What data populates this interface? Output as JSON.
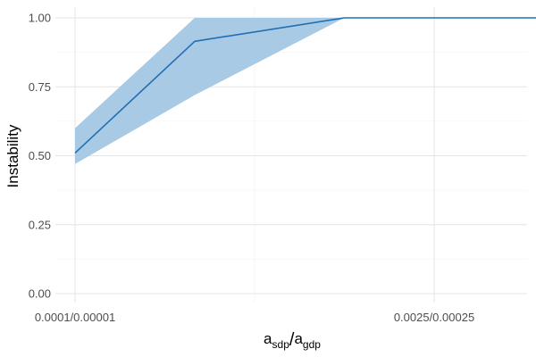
{
  "chart_data": {
    "type": "line",
    "xlabel": {
      "base_a": "a",
      "sub_a": "sdp",
      "slash": "/",
      "base_b": "a",
      "sub_b": "gdp"
    },
    "ylabel": "Instability",
    "x_ticks": [
      {
        "label": "0.0001/0.00001",
        "value": 0.0001
      },
      {
        "label": "0.0025/0.00025",
        "value": 0.0025
      }
    ],
    "xlim": [
      0.0001,
      0.0036
    ],
    "ylim": [
      0.0,
      1.0
    ],
    "y_ticks": [
      "0.00",
      "0.25",
      "0.50",
      "0.75",
      "1.00"
    ],
    "series": [
      {
        "x": [
          0.0001,
          0.0009,
          0.0019,
          0.0025,
          0.003,
          0.0035
        ],
        "y": [
          0.51,
          0.915,
          1.0,
          1.0,
          1.0,
          1.0
        ],
        "lower": [
          0.47,
          0.72,
          1.0,
          1.0,
          1.0,
          1.0
        ],
        "upper": [
          0.6,
          1.0,
          1.0,
          1.0,
          1.0,
          1.0
        ]
      }
    ],
    "grid": true,
    "legend": "none",
    "colors": {
      "line": "#1f6fb4",
      "ribbon": "#a9cae4",
      "grid_major": "#e4e4e4",
      "grid_minor": "#f1f1f1"
    }
  }
}
